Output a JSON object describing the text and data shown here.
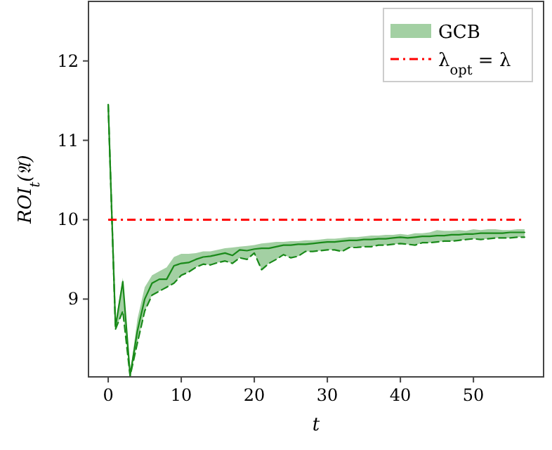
{
  "chart_data": {
    "type": "line",
    "xlabel": "t",
    "ylabel": "ROI$_{t}$(𝔄)",
    "xlim": [
      -2.7,
      59.6
    ],
    "ylim": [
      8.02,
      12.75
    ],
    "xticks": [
      0,
      10,
      20,
      30,
      40,
      50
    ],
    "yticks": [
      9,
      10,
      11,
      12
    ],
    "grid": false,
    "legend": "top right",
    "marker": "none",
    "x": [
      0,
      1,
      2,
      3,
      4,
      5,
      6,
      7,
      8,
      9,
      10,
      11,
      12,
      13,
      14,
      15,
      16,
      17,
      18,
      19,
      20,
      21,
      22,
      23,
      24,
      25,
      26,
      27,
      28,
      29,
      30,
      31,
      32,
      33,
      34,
      35,
      36,
      37,
      38,
      39,
      40,
      41,
      42,
      43,
      44,
      45,
      46,
      47,
      48,
      49,
      50,
      51,
      52,
      53,
      54,
      55,
      56,
      57
    ],
    "series": [
      {
        "name": "GCB",
        "color": "#1a8a1a",
        "line_style": "solid",
        "values": [
          11.45,
          8.65,
          9.22,
          8.04,
          8.6,
          9.0,
          9.2,
          9.25,
          9.25,
          9.42,
          9.45,
          9.46,
          9.5,
          9.53,
          9.54,
          9.56,
          9.58,
          9.55,
          9.62,
          9.61,
          9.63,
          9.64,
          9.64,
          9.66,
          9.68,
          9.68,
          9.69,
          9.69,
          9.7,
          9.71,
          9.72,
          9.72,
          9.73,
          9.74,
          9.74,
          9.75,
          9.75,
          9.76,
          9.76,
          9.77,
          9.78,
          9.77,
          9.78,
          9.79,
          9.79,
          9.8,
          9.8,
          9.81,
          9.81,
          9.82,
          9.82,
          9.83,
          9.83,
          9.83,
          9.83,
          9.84,
          9.84,
          9.84
        ],
        "upper": [
          11.45,
          8.7,
          9.27,
          8.06,
          8.75,
          9.15,
          9.3,
          9.35,
          9.4,
          9.53,
          9.57,
          9.57,
          9.58,
          9.6,
          9.6,
          9.62,
          9.64,
          9.65,
          9.66,
          9.67,
          9.68,
          9.7,
          9.71,
          9.72,
          9.72,
          9.73,
          9.73,
          9.74,
          9.74,
          9.75,
          9.76,
          9.76,
          9.77,
          9.78,
          9.78,
          9.79,
          9.8,
          9.8,
          9.81,
          9.81,
          9.82,
          9.81,
          9.83,
          9.83,
          9.84,
          9.87,
          9.86,
          9.86,
          9.87,
          9.86,
          9.88,
          9.87,
          9.88,
          9.88,
          9.87,
          9.87,
          9.88,
          9.88
        ],
        "lower": [
          11.45,
          8.62,
          8.85,
          8.03,
          8.45,
          8.85,
          9.05,
          9.1,
          9.15,
          9.2,
          9.3,
          9.34,
          9.4,
          9.44,
          9.43,
          9.46,
          9.48,
          9.45,
          9.52,
          9.5,
          9.58,
          9.37,
          9.45,
          9.5,
          9.56,
          9.52,
          9.54,
          9.6,
          9.6,
          9.61,
          9.62,
          9.62,
          9.6,
          9.65,
          9.65,
          9.66,
          9.66,
          9.68,
          9.68,
          9.69,
          9.7,
          9.69,
          9.68,
          9.71,
          9.71,
          9.72,
          9.73,
          9.73,
          9.74,
          9.75,
          9.76,
          9.75,
          9.76,
          9.77,
          9.77,
          9.77,
          9.78,
          9.78
        ]
      },
      {
        "color": "#1a8a1a",
        "line_style": "dashed",
        "values": [
          11.45,
          8.62,
          8.85,
          8.03,
          8.45,
          8.85,
          9.05,
          9.1,
          9.15,
          9.2,
          9.3,
          9.34,
          9.4,
          9.44,
          9.43,
          9.46,
          9.48,
          9.45,
          9.52,
          9.5,
          9.58,
          9.37,
          9.45,
          9.5,
          9.56,
          9.52,
          9.54,
          9.6,
          9.6,
          9.61,
          9.62,
          9.62,
          9.6,
          9.65,
          9.65,
          9.66,
          9.66,
          9.68,
          9.68,
          9.69,
          9.7,
          9.69,
          9.68,
          9.71,
          9.71,
          9.72,
          9.73,
          9.73,
          9.74,
          9.75,
          9.76,
          9.75,
          9.76,
          9.77,
          9.77,
          9.77,
          9.78,
          9.78
        ]
      }
    ],
    "ref_lines": [
      {
        "axis": "y",
        "value": 10,
        "label": "λ$_{opt}$ = λ",
        "color": "#ff0000",
        "line_style": "dashdot"
      }
    ]
  }
}
